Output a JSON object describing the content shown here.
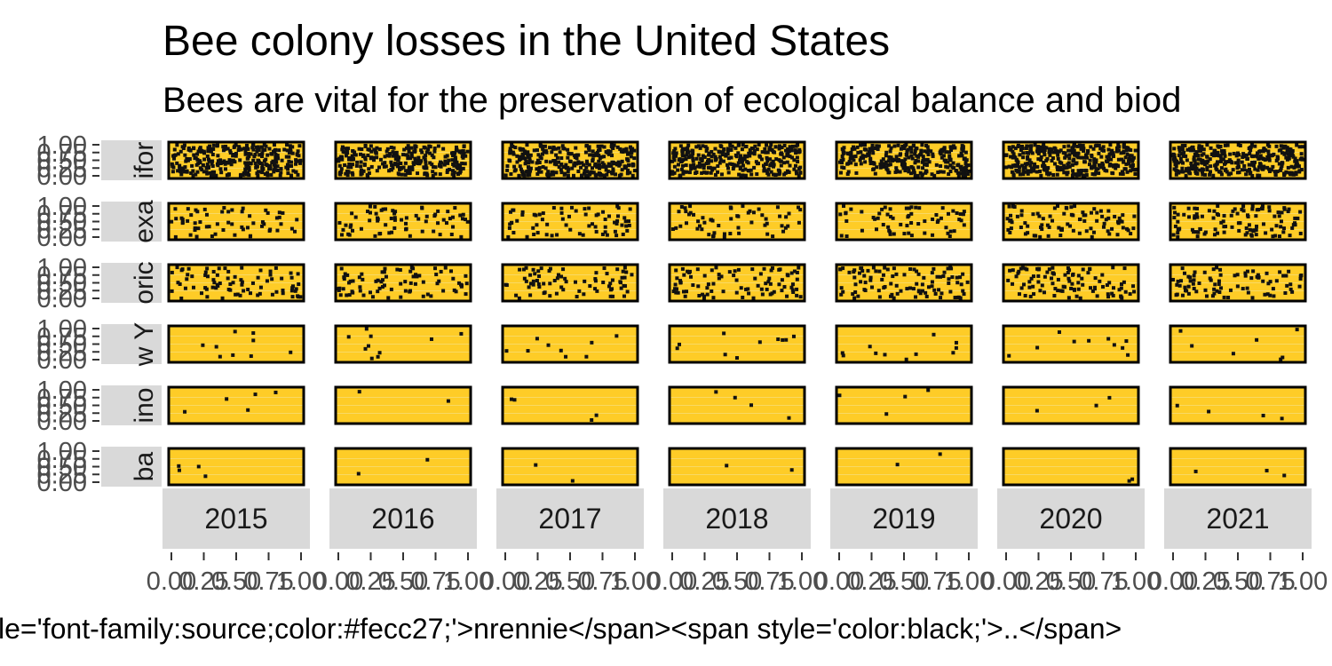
{
  "chart_data": {
    "type": "scatter",
    "title": "Bee colony losses in the United States",
    "subtitle": "Bees are vital for the preservation of ecological balance and biod",
    "caption": "le='font-family:source;color:#fecc27;'>nrennie</span><span style='color:black;'>..</span>",
    "columns": [
      "2015",
      "2016",
      "2017",
      "2018",
      "2019",
      "2020",
      "2021"
    ],
    "rows": [
      "ifor",
      "exa",
      "oric",
      "w Y",
      "ino",
      "ba"
    ],
    "x_ticks": [
      "0.00",
      "0.25",
      "0.50",
      "0.75",
      "1.00"
    ],
    "y_ticks": [
      "0.00",
      "0.25",
      "0.50",
      "0.75",
      "1.00"
    ],
    "xlim": [
      0,
      1
    ],
    "ylim": [
      0,
      1
    ],
    "point_counts": [
      [
        300,
        280,
        300,
        300,
        280,
        350,
        340
      ],
      [
        60,
        70,
        70,
        60,
        65,
        90,
        110
      ],
      [
        80,
        80,
        75,
        90,
        100,
        100,
        85
      ],
      [
        9,
        10,
        9,
        10,
        11,
        10,
        7
      ],
      [
        5,
        2,
        4,
        4,
        4,
        3,
        4
      ],
      [
        4,
        2,
        2,
        2,
        2,
        2,
        3
      ]
    ],
    "panel_fill": "#fecc27",
    "point_color": "#111111",
    "strip_fill": "#d9d9d9",
    "grid": true
  }
}
